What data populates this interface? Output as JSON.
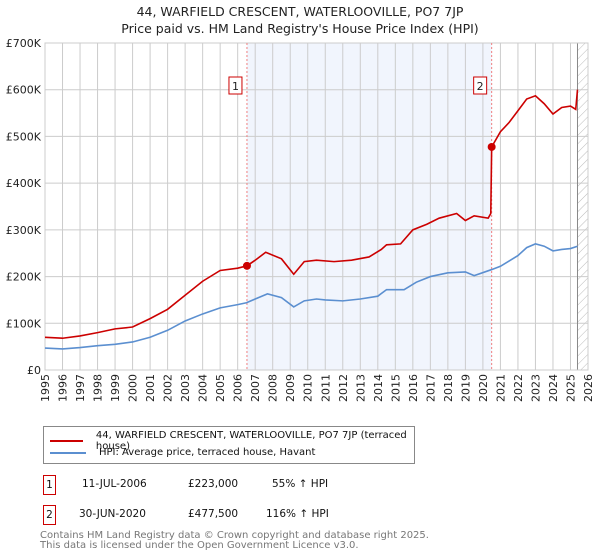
{
  "chart_data": {
    "type": "line",
    "title": "44, WARFIELD CRESCENT, WATERLOOVILLE, PO7 7JP",
    "subtitle": "Price paid vs. HM Land Registry's House Price Index (HPI)",
    "xlim": [
      1995,
      2026
    ],
    "ylim": [
      0,
      700000
    ],
    "x_ticks": [
      "1995",
      "1996",
      "1997",
      "1998",
      "1999",
      "2000",
      "2001",
      "2002",
      "2003",
      "2004",
      "2005",
      "2006",
      "2007",
      "2008",
      "2009",
      "2010",
      "2011",
      "2012",
      "2013",
      "2014",
      "2015",
      "2016",
      "2017",
      "2018",
      "2019",
      "2020",
      "2021",
      "2022",
      "2023",
      "2024",
      "2025",
      "2026"
    ],
    "y_ticks": [
      {
        "v": 0,
        "label": "£0"
      },
      {
        "v": 100000,
        "label": "£100K"
      },
      {
        "v": 200000,
        "label": "£200K"
      },
      {
        "v": 300000,
        "label": "£300K"
      },
      {
        "v": 400000,
        "label": "£400K"
      },
      {
        "v": 500000,
        "label": "£500K"
      },
      {
        "v": 600000,
        "label": "£600K"
      },
      {
        "v": 700000,
        "label": "£700K"
      }
    ],
    "grid": true,
    "shaded_range": [
      2006.53,
      2020.5
    ],
    "hatched_from": 2025.4,
    "series": [
      {
        "name": "44, WARFIELD CRESCENT, WATERLOOVILLE, PO7 7JP (terraced house)",
        "color": "#cc0000",
        "x": [
          1995,
          1996,
          1997,
          1998,
          1999,
          2000,
          2001,
          2002,
          2003,
          2004,
          2005,
          2006,
          2006.53,
          2007,
          2007.6,
          2008.5,
          2009.2,
          2009.8,
          2010.5,
          2011.5,
          2012.5,
          2013.5,
          2014.2,
          2014.5,
          2015.3,
          2016,
          2016.8,
          2017.5,
          2018.5,
          2019,
          2019.5,
          2020.3,
          2020.45,
          2020.5,
          2021,
          2021.5,
          2022,
          2022.5,
          2023,
          2023.5,
          2024,
          2024.5,
          2025,
          2025.3,
          2025.4
        ],
        "y": [
          70000,
          68000,
          73000,
          80000,
          88000,
          92000,
          110000,
          130000,
          160000,
          190000,
          213000,
          218000,
          223000,
          235000,
          252000,
          238000,
          205000,
          232000,
          235000,
          232000,
          235000,
          242000,
          258000,
          268000,
          270000,
          300000,
          312000,
          325000,
          335000,
          320000,
          330000,
          325000,
          335000,
          477500,
          510000,
          530000,
          555000,
          580000,
          587000,
          570000,
          548000,
          562000,
          565000,
          558000,
          600000
        ]
      },
      {
        "name": "HPI: Average price, terraced house, Havant",
        "color": "#5b8fd0",
        "x": [
          1995,
          1996,
          1997,
          1998,
          1999,
          2000,
          2001,
          2002,
          2003,
          2004,
          2005,
          2006,
          2006.5,
          2007,
          2007.7,
          2008.5,
          2009.2,
          2009.8,
          2010.5,
          2011,
          2012,
          2013,
          2014,
          2014.5,
          2015.5,
          2016.2,
          2017,
          2018,
          2019,
          2019.5,
          2020.5,
          2021,
          2022,
          2022.5,
          2023,
          2023.5,
          2024,
          2024.5,
          2025,
          2025.4
        ],
        "y": [
          47000,
          45000,
          48000,
          52000,
          55000,
          60000,
          70000,
          85000,
          105000,
          120000,
          133000,
          140000,
          144000,
          152000,
          163000,
          155000,
          135000,
          148000,
          152000,
          150000,
          148000,
          152000,
          158000,
          172000,
          172000,
          188000,
          200000,
          208000,
          210000,
          202000,
          215000,
          222000,
          245000,
          262000,
          270000,
          265000,
          255000,
          258000,
          260000,
          265000
        ]
      }
    ],
    "annotations": [
      {
        "label": "1",
        "x": 2006.53,
        "y": 223000,
        "date": "11-JUL-2006",
        "price": "£223,000",
        "hpi": "55% ↑ HPI"
      },
      {
        "label": "2",
        "x": 2020.5,
        "y": 477500,
        "date": "30-JUN-2020",
        "price": "£477,500",
        "hpi": "116% ↑ HPI"
      }
    ]
  },
  "footer": [
    "Contains HM Land Registry data © Crown copyright and database right 2025.",
    "This data is licensed under the Open Government Licence v3.0."
  ]
}
